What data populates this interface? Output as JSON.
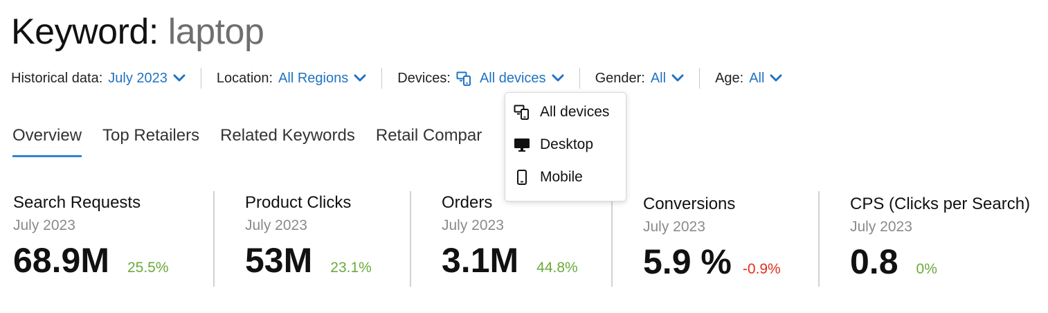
{
  "title": {
    "label": "Keyword:",
    "keyword": "laptop"
  },
  "filters": {
    "historical": {
      "label": "Historical data:",
      "value": "July 2023"
    },
    "location": {
      "label": "Location:",
      "value": "All Regions"
    },
    "devices": {
      "label": "Devices:",
      "value": "All devices",
      "icon": "devices-icon"
    },
    "gender": {
      "label": "Gender:",
      "value": "All"
    },
    "age": {
      "label": "Age:",
      "value": "All"
    }
  },
  "tabs": [
    {
      "label": "Overview",
      "active": true
    },
    {
      "label": "Top Retailers"
    },
    {
      "label": "Related Keywords"
    },
    {
      "label": "Retail Compar"
    }
  ],
  "metrics": [
    {
      "name": "Search Requests",
      "period": "July 2023",
      "value": "68.9M",
      "change": "25.5%",
      "trend": "positive"
    },
    {
      "name": "Product Clicks",
      "period": "July 2023",
      "value": "53M",
      "change": "23.1%",
      "trend": "positive"
    },
    {
      "name": "Orders",
      "period": "July 2023",
      "value": "3.1M",
      "change": "44.8%",
      "trend": "positive"
    },
    {
      "name": "Conversions",
      "period": "July 2023",
      "value": "5.9 %",
      "change": "-0.9%",
      "trend": "negative"
    },
    {
      "name": "CPS (Clicks per Search)",
      "period": "July 2023",
      "value": "0.8",
      "change": "0%",
      "trend": "positive"
    }
  ],
  "device_dropdown": {
    "items": [
      {
        "label": "All devices",
        "icon": "devices-icon"
      },
      {
        "label": "Desktop",
        "icon": "desktop-icon"
      },
      {
        "label": "Mobile",
        "icon": "mobile-icon"
      }
    ]
  },
  "colors": {
    "link": "#1f73c2",
    "positive": "#6aaa3a",
    "negative": "#e0301e",
    "tab_underline": "#2b86d8",
    "keyword_gray": "#6f6f6f"
  }
}
